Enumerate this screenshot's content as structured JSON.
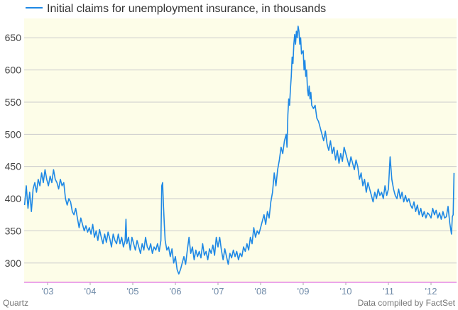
{
  "footer": {
    "source_left": "Quartz",
    "source_right": "Data compiled by FactSet"
  },
  "chart_data": {
    "type": "line",
    "title": "",
    "xlabel": "",
    "ylabel": "",
    "legend": {
      "placement": "top-left",
      "label": "Initial claims for unemployment insurance, in thousands"
    },
    "grid": true,
    "colors": {
      "series": "#1e88e5",
      "plot_background": "#fdfde8",
      "gridline": "#cccccc",
      "baseline": "#e070e0"
    },
    "xlim": [
      2002.45,
      2012.6
    ],
    "ylim": [
      270,
      680
    ],
    "y_ticks": [
      300,
      350,
      400,
      450,
      500,
      550,
      600,
      650
    ],
    "x_ticks": [
      {
        "label": "'03",
        "x": 2003.0
      },
      {
        "label": "'04",
        "x": 2004.0
      },
      {
        "label": "'05",
        "x": 2005.0
      },
      {
        "label": "'06",
        "x": 2006.0
      },
      {
        "label": "'07",
        "x": 2007.0
      },
      {
        "label": "'08",
        "x": 2008.0
      },
      {
        "label": "'09",
        "x": 2009.0
      },
      {
        "label": "'10",
        "x": 2010.0
      },
      {
        "label": "'11",
        "x": 2011.0
      },
      {
        "label": "'12",
        "x": 2012.0
      }
    ],
    "series": [
      {
        "name": "Initial claims for unemployment insurance, in thousands",
        "points": [
          [
            2002.46,
            390
          ],
          [
            2002.5,
            420
          ],
          [
            2002.54,
            385
          ],
          [
            2002.58,
            410
          ],
          [
            2002.62,
            380
          ],
          [
            2002.66,
            415
          ],
          [
            2002.7,
            425
          ],
          [
            2002.74,
            410
          ],
          [
            2002.78,
            430
          ],
          [
            2002.82,
            420
          ],
          [
            2002.86,
            440
          ],
          [
            2002.9,
            425
          ],
          [
            2002.94,
            445
          ],
          [
            2002.98,
            430
          ],
          [
            2003.02,
            420
          ],
          [
            2003.06,
            435
          ],
          [
            2003.1,
            425
          ],
          [
            2003.14,
            445
          ],
          [
            2003.18,
            430
          ],
          [
            2003.22,
            425
          ],
          [
            2003.26,
            415
          ],
          [
            2003.3,
            430
          ],
          [
            2003.34,
            420
          ],
          [
            2003.38,
            425
          ],
          [
            2003.42,
            400
          ],
          [
            2003.46,
            390
          ],
          [
            2003.5,
            400
          ],
          [
            2003.54,
            395
          ],
          [
            2003.58,
            380
          ],
          [
            2003.62,
            375
          ],
          [
            2003.66,
            385
          ],
          [
            2003.7,
            370
          ],
          [
            2003.74,
            355
          ],
          [
            2003.78,
            370
          ],
          [
            2003.82,
            360
          ],
          [
            2003.86,
            350
          ],
          [
            2003.9,
            358
          ],
          [
            2003.94,
            348
          ],
          [
            2003.98,
            355
          ],
          [
            2004.02,
            345
          ],
          [
            2004.06,
            360
          ],
          [
            2004.1,
            340
          ],
          [
            2004.14,
            350
          ],
          [
            2004.18,
            335
          ],
          [
            2004.22,
            352
          ],
          [
            2004.26,
            340
          ],
          [
            2004.3,
            330
          ],
          [
            2004.34,
            345
          ],
          [
            2004.38,
            332
          ],
          [
            2004.42,
            348
          ],
          [
            2004.46,
            338
          ],
          [
            2004.5,
            325
          ],
          [
            2004.54,
            345
          ],
          [
            2004.58,
            335
          ],
          [
            2004.62,
            330
          ],
          [
            2004.66,
            345
          ],
          [
            2004.7,
            330
          ],
          [
            2004.74,
            340
          ],
          [
            2004.78,
            325
          ],
          [
            2004.82,
            335
          ],
          [
            2004.84,
            368
          ],
          [
            2004.86,
            330
          ],
          [
            2004.9,
            340
          ],
          [
            2004.94,
            320
          ],
          [
            2004.98,
            340
          ],
          [
            2005.02,
            330
          ],
          [
            2005.06,
            320
          ],
          [
            2005.1,
            335
          ],
          [
            2005.14,
            325
          ],
          [
            2005.18,
            315
          ],
          [
            2005.22,
            330
          ],
          [
            2005.26,
            320
          ],
          [
            2005.3,
            340
          ],
          [
            2005.34,
            325
          ],
          [
            2005.38,
            320
          ],
          [
            2005.42,
            330
          ],
          [
            2005.46,
            315
          ],
          [
            2005.5,
            325
          ],
          [
            2005.54,
            320
          ],
          [
            2005.58,
            330
          ],
          [
            2005.62,
            318
          ],
          [
            2005.66,
            335
          ],
          [
            2005.68,
            420
          ],
          [
            2005.7,
            425
          ],
          [
            2005.72,
            390
          ],
          [
            2005.74,
            360
          ],
          [
            2005.76,
            335
          ],
          [
            2005.8,
            320
          ],
          [
            2005.84,
            325
          ],
          [
            2005.88,
            310
          ],
          [
            2005.92,
            322
          ],
          [
            2005.96,
            300
          ],
          [
            2006.0,
            310
          ],
          [
            2006.04,
            290
          ],
          [
            2006.08,
            283
          ],
          [
            2006.12,
            290
          ],
          [
            2006.16,
            300
          ],
          [
            2006.2,
            310
          ],
          [
            2006.24,
            298
          ],
          [
            2006.28,
            320
          ],
          [
            2006.32,
            340
          ],
          [
            2006.36,
            315
          ],
          [
            2006.4,
            325
          ],
          [
            2006.44,
            305
          ],
          [
            2006.48,
            320
          ],
          [
            2006.52,
            310
          ],
          [
            2006.56,
            318
          ],
          [
            2006.6,
            308
          ],
          [
            2006.64,
            330
          ],
          [
            2006.68,
            312
          ],
          [
            2006.72,
            318
          ],
          [
            2006.76,
            305
          ],
          [
            2006.8,
            322
          ],
          [
            2006.84,
            315
          ],
          [
            2006.88,
            328
          ],
          [
            2006.92,
            312
          ],
          [
            2006.96,
            340
          ],
          [
            2007.0,
            325
          ],
          [
            2007.04,
            340
          ],
          [
            2007.08,
            320
          ],
          [
            2007.12,
            305
          ],
          [
            2007.16,
            322
          ],
          [
            2007.2,
            310
          ],
          [
            2007.24,
            298
          ],
          [
            2007.28,
            315
          ],
          [
            2007.32,
            308
          ],
          [
            2007.36,
            320
          ],
          [
            2007.4,
            310
          ],
          [
            2007.44,
            318
          ],
          [
            2007.48,
            305
          ],
          [
            2007.52,
            315
          ],
          [
            2007.56,
            310
          ],
          [
            2007.6,
            325
          ],
          [
            2007.64,
            318
          ],
          [
            2007.68,
            330
          ],
          [
            2007.72,
            320
          ],
          [
            2007.76,
            340
          ],
          [
            2007.8,
            330
          ],
          [
            2007.84,
            355
          ],
          [
            2007.88,
            340
          ],
          [
            2007.92,
            350
          ],
          [
            2007.96,
            345
          ],
          [
            2008.0,
            355
          ],
          [
            2008.04,
            365
          ],
          [
            2008.08,
            375
          ],
          [
            2008.12,
            360
          ],
          [
            2008.16,
            380
          ],
          [
            2008.2,
            370
          ],
          [
            2008.24,
            395
          ],
          [
            2008.28,
            410
          ],
          [
            2008.32,
            440
          ],
          [
            2008.36,
            420
          ],
          [
            2008.4,
            445
          ],
          [
            2008.44,
            460
          ],
          [
            2008.48,
            480
          ],
          [
            2008.52,
            470
          ],
          [
            2008.56,
            490
          ],
          [
            2008.6,
            500
          ],
          [
            2008.62,
            480
          ],
          [
            2008.64,
            530
          ],
          [
            2008.66,
            555
          ],
          [
            2008.68,
            545
          ],
          [
            2008.7,
            570
          ],
          [
            2008.72,
            590
          ],
          [
            2008.74,
            620
          ],
          [
            2008.76,
            610
          ],
          [
            2008.78,
            640
          ],
          [
            2008.8,
            655
          ],
          [
            2008.82,
            640
          ],
          [
            2008.84,
            660
          ],
          [
            2008.86,
            650
          ],
          [
            2008.88,
            668
          ],
          [
            2008.9,
            660
          ],
          [
            2008.92,
            640
          ],
          [
            2008.94,
            650
          ],
          [
            2008.96,
            625
          ],
          [
            2009.0,
            630
          ],
          [
            2009.02,
            600
          ],
          [
            2009.04,
            615
          ],
          [
            2009.06,
            590
          ],
          [
            2009.08,
            600
          ],
          [
            2009.1,
            570
          ],
          [
            2009.12,
            560
          ],
          [
            2009.14,
            575
          ],
          [
            2009.16,
            555
          ],
          [
            2009.18,
            565
          ],
          [
            2009.2,
            545
          ],
          [
            2009.24,
            540
          ],
          [
            2009.28,
            545
          ],
          [
            2009.32,
            525
          ],
          [
            2009.36,
            520
          ],
          [
            2009.4,
            510
          ],
          [
            2009.44,
            500
          ],
          [
            2009.48,
            490
          ],
          [
            2009.52,
            505
          ],
          [
            2009.56,
            485
          ],
          [
            2009.6,
            475
          ],
          [
            2009.64,
            490
          ],
          [
            2009.68,
            470
          ],
          [
            2009.72,
            480
          ],
          [
            2009.76,
            460
          ],
          [
            2009.8,
            475
          ],
          [
            2009.84,
            455
          ],
          [
            2009.88,
            470
          ],
          [
            2009.92,
            458
          ],
          [
            2009.96,
            480
          ],
          [
            2010.0,
            470
          ],
          [
            2010.04,
            460
          ],
          [
            2010.08,
            450
          ],
          [
            2010.12,
            465
          ],
          [
            2010.16,
            455
          ],
          [
            2010.2,
            445
          ],
          [
            2010.24,
            460
          ],
          [
            2010.28,
            450
          ],
          [
            2010.32,
            430
          ],
          [
            2010.36,
            440
          ],
          [
            2010.4,
            420
          ],
          [
            2010.44,
            430
          ],
          [
            2010.48,
            410
          ],
          [
            2010.52,
            425
          ],
          [
            2010.56,
            415
          ],
          [
            2010.6,
            405
          ],
          [
            2010.64,
            395
          ],
          [
            2010.68,
            410
          ],
          [
            2010.72,
            400
          ],
          [
            2010.76,
            415
          ],
          [
            2010.8,
            405
          ],
          [
            2010.84,
            410
          ],
          [
            2010.88,
            400
          ],
          [
            2010.92,
            420
          ],
          [
            2010.96,
            405
          ],
          [
            2011.0,
            415
          ],
          [
            2011.04,
            465
          ],
          [
            2011.08,
            430
          ],
          [
            2011.12,
            415
          ],
          [
            2011.16,
            405
          ],
          [
            2011.2,
            400
          ],
          [
            2011.24,
            415
          ],
          [
            2011.28,
            400
          ],
          [
            2011.32,
            410
          ],
          [
            2011.36,
            395
          ],
          [
            2011.4,
            405
          ],
          [
            2011.44,
            395
          ],
          [
            2011.48,
            400
          ],
          [
            2011.52,
            390
          ],
          [
            2011.56,
            385
          ],
          [
            2011.6,
            395
          ],
          [
            2011.64,
            380
          ],
          [
            2011.68,
            390
          ],
          [
            2011.72,
            375
          ],
          [
            2011.76,
            385
          ],
          [
            2011.8,
            372
          ],
          [
            2011.84,
            380
          ],
          [
            2011.88,
            370
          ],
          [
            2011.92,
            378
          ],
          [
            2011.96,
            375
          ],
          [
            2012.0,
            370
          ],
          [
            2012.04,
            385
          ],
          [
            2012.08,
            375
          ],
          [
            2012.12,
            382
          ],
          [
            2012.16,
            370
          ],
          [
            2012.2,
            378
          ],
          [
            2012.24,
            368
          ],
          [
            2012.28,
            380
          ],
          [
            2012.32,
            370
          ],
          [
            2012.36,
            372
          ],
          [
            2012.4,
            388
          ],
          [
            2012.44,
            362
          ],
          [
            2012.48,
            345
          ],
          [
            2012.5,
            372
          ],
          [
            2012.52,
            375
          ],
          [
            2012.54,
            440
          ]
        ]
      }
    ]
  }
}
